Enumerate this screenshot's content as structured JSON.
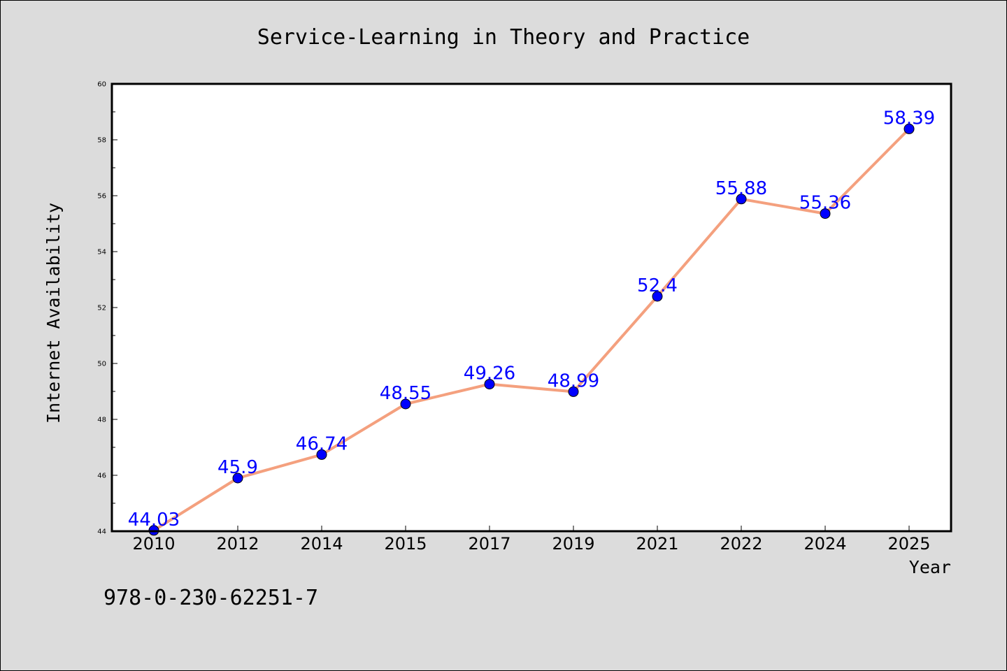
{
  "chart_data": {
    "type": "line",
    "title": "Service-Learning in Theory and Practice",
    "xlabel": "Year",
    "ylabel": "Internet Availability",
    "categories": [
      "2010",
      "2012",
      "2014",
      "2015",
      "2017",
      "2019",
      "2021",
      "2022",
      "2024",
      "2025"
    ],
    "series": [
      {
        "values": [
          44.03,
          45.9,
          46.74,
          48.55,
          49.26,
          48.99,
          52.4,
          55.88,
          55.36,
          58.39
        ],
        "labels": [
          "44.03",
          "45.9",
          "46.74",
          "48.55",
          "49.26",
          "48.99",
          "52.4",
          "55.88",
          "55.36",
          "58.39"
        ]
      }
    ],
    "ylim": [
      44,
      60
    ],
    "yticks": [
      "44",
      "46",
      "48",
      "50",
      "52",
      "54",
      "56",
      "58",
      "60"
    ],
    "grid": false,
    "legend": "none",
    "colors": {
      "line": "#f4a07e",
      "marker": "#0000ff",
      "data_label": "#0000ff",
      "plot_background": "#ffffff",
      "figure_background": "#dcdcdc"
    }
  },
  "footer": {
    "isbn": "978-0-230-62251-7"
  }
}
